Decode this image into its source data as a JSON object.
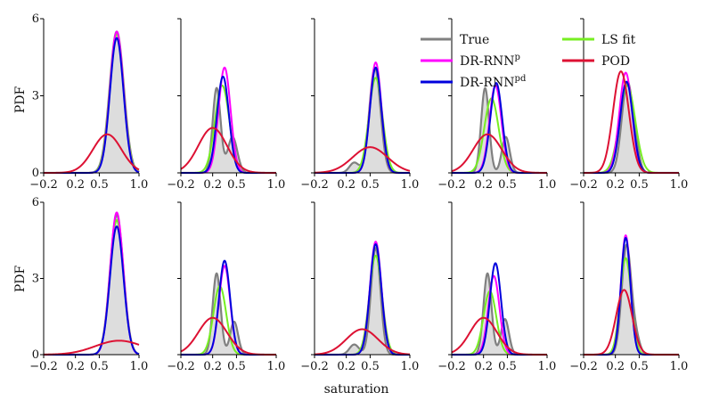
{
  "chart_data": {
    "type": "line",
    "title": "",
    "xlabel": "saturation",
    "ylabel": "PDF",
    "xlim": [
      -0.2,
      1.0
    ],
    "ylim": [
      0,
      6
    ],
    "xticks": [
      {
        "value": -0.2,
        "label": "−0.2"
      },
      {
        "value": 0.2,
        "label": "0.2"
      },
      {
        "value": 0.5,
        "label": "0.5"
      },
      {
        "value": 1.0,
        "label": "1.0"
      }
    ],
    "yticks": [
      {
        "value": 0,
        "label": "0"
      },
      {
        "value": 3,
        "label": "3"
      },
      {
        "value": 6,
        "label": "6"
      }
    ],
    "series_styles": [
      {
        "key": "true",
        "name": "True",
        "color": "#808080"
      },
      {
        "key": "dr_rnn_p",
        "name": "DR-RNN",
        "sup": "p",
        "color": "#ff00ff"
      },
      {
        "key": "dr_rnn_pd",
        "name": "DR-RNN",
        "sup": "pd",
        "color": "#0000dd"
      },
      {
        "key": "ls_fit",
        "name": "LS fit",
        "color": "#77ee22"
      },
      {
        "key": "pod",
        "name": "POD",
        "color": "#dd1133"
      }
    ],
    "panels": [
      {
        "row": 0,
        "col": 0,
        "true": [
          [
            0.72,
            0.09,
            5.5
          ]
        ],
        "dr_rnn_p": [
          [
            0.72,
            0.085,
            5.5
          ]
        ],
        "dr_rnn_pd": [
          [
            0.72,
            0.085,
            5.25
          ]
        ],
        "ls_fit": [
          [
            0.72,
            0.088,
            5.4
          ]
        ],
        "pod": [
          [
            0.6,
            0.18,
            1.5
          ]
        ]
      },
      {
        "row": 0,
        "col": 1,
        "true": [
          [
            0.25,
            0.05,
            3.3
          ],
          [
            0.45,
            0.06,
            1.4
          ]
        ],
        "dr_rnn_p": [
          [
            0.35,
            0.075,
            4.1
          ]
        ],
        "dr_rnn_pd": [
          [
            0.33,
            0.075,
            3.75
          ]
        ],
        "ls_fit": [
          [
            0.32,
            0.09,
            3.4
          ]
        ],
        "pod": [
          [
            0.2,
            0.18,
            1.75
          ]
        ]
      },
      {
        "row": 0,
        "col": 2,
        "true": [
          [
            0.56,
            0.07,
            4.1
          ],
          [
            0.3,
            0.06,
            0.4
          ]
        ],
        "dr_rnn_p": [
          [
            0.57,
            0.072,
            4.3
          ]
        ],
        "dr_rnn_pd": [
          [
            0.57,
            0.073,
            4.1
          ]
        ],
        "ls_fit": [
          [
            0.57,
            0.085,
            3.7
          ]
        ],
        "pod": [
          [
            0.5,
            0.22,
            1.0
          ]
        ]
      },
      {
        "row": 0,
        "col": 3,
        "true": [
          [
            0.22,
            0.05,
            3.3
          ],
          [
            0.48,
            0.05,
            1.4
          ]
        ],
        "dr_rnn_p": [
          [
            0.35,
            0.075,
            3.4
          ]
        ],
        "dr_rnn_pd": [
          [
            0.36,
            0.075,
            3.5
          ]
        ],
        "ls_fit": [
          [
            0.3,
            0.09,
            2.9
          ]
        ],
        "pod": [
          [
            0.25,
            0.18,
            1.5
          ]
        ]
      },
      {
        "row": 0,
        "col": 4,
        "true": [
          [
            0.35,
            0.07,
            3.5
          ],
          [
            0.46,
            0.05,
            0.5
          ]
        ],
        "dr_rnn_p": [
          [
            0.33,
            0.08,
            3.9
          ]
        ],
        "dr_rnn_pd": [
          [
            0.34,
            0.08,
            3.55
          ]
        ],
        "ls_fit": [
          [
            0.35,
            0.1,
            3.4
          ]
        ],
        "pod": [
          [
            0.27,
            0.1,
            3.95
          ]
        ]
      },
      {
        "row": 1,
        "col": 0,
        "true": [
          [
            0.72,
            0.085,
            5.5
          ]
        ],
        "dr_rnn_p": [
          [
            0.72,
            0.083,
            5.6
          ]
        ],
        "dr_rnn_pd": [
          [
            0.72,
            0.085,
            5.05
          ]
        ],
        "ls_fit": [
          [
            0.72,
            0.085,
            5.3
          ]
        ],
        "pod": [
          [
            0.75,
            0.3,
            0.55
          ]
        ]
      },
      {
        "row": 1,
        "col": 1,
        "true": [
          [
            0.25,
            0.05,
            3.2
          ],
          [
            0.47,
            0.05,
            1.3
          ]
        ],
        "dr_rnn_p": [
          [
            0.35,
            0.07,
            3.5
          ]
        ],
        "dr_rnn_pd": [
          [
            0.35,
            0.07,
            3.7
          ]
        ],
        "ls_fit": [
          [
            0.29,
            0.08,
            2.7
          ]
        ],
        "pod": [
          [
            0.2,
            0.18,
            1.45
          ]
        ]
      },
      {
        "row": 1,
        "col": 2,
        "true": [
          [
            0.57,
            0.06,
            4.2
          ],
          [
            0.3,
            0.06,
            0.4
          ]
        ],
        "dr_rnn_p": [
          [
            0.57,
            0.072,
            4.45
          ]
        ],
        "dr_rnn_pd": [
          [
            0.57,
            0.072,
            4.35
          ]
        ],
        "ls_fit": [
          [
            0.57,
            0.08,
            3.9
          ]
        ],
        "pod": [
          [
            0.4,
            0.2,
            1.0
          ]
        ]
      },
      {
        "row": 1,
        "col": 3,
        "true": [
          [
            0.25,
            0.05,
            3.2
          ],
          [
            0.47,
            0.05,
            1.4
          ]
        ],
        "dr_rnn_p": [
          [
            0.33,
            0.07,
            3.1
          ]
        ],
        "dr_rnn_pd": [
          [
            0.35,
            0.07,
            3.6
          ]
        ],
        "ls_fit": [
          [
            0.28,
            0.08,
            2.5
          ]
        ],
        "pod": [
          [
            0.2,
            0.17,
            1.45
          ]
        ]
      },
      {
        "row": 1,
        "col": 4,
        "true": [
          [
            0.34,
            0.06,
            4.3
          ],
          [
            0.46,
            0.05,
            0.6
          ]
        ],
        "dr_rnn_p": [
          [
            0.33,
            0.06,
            4.7
          ]
        ],
        "dr_rnn_pd": [
          [
            0.33,
            0.06,
            4.6
          ]
        ],
        "ls_fit": [
          [
            0.33,
            0.07,
            3.8
          ]
        ],
        "pod": [
          [
            0.31,
            0.1,
            2.55
          ]
        ]
      }
    ]
  }
}
